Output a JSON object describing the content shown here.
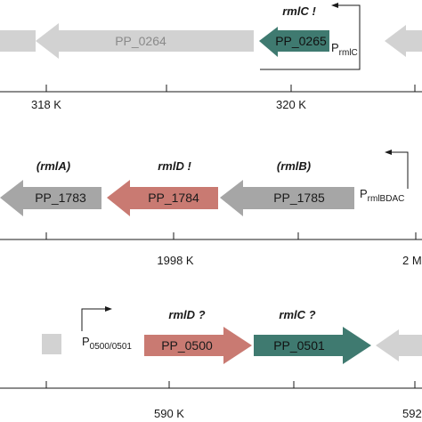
{
  "colors": {
    "gray_light": "#d2d2d2",
    "gray_med": "#a6a6a6",
    "teal": "#3f7a70",
    "salmon": "#c97a72",
    "line": "#1a1a1a"
  },
  "panel1": {
    "genes": [
      {
        "label": "",
        "color": "gray_light"
      },
      {
        "label": "PP_0264",
        "color": "gray_light"
      },
      {
        "label": "PP_0265",
        "color": "teal"
      },
      {
        "label": "",
        "color": "gray_light"
      }
    ],
    "name_label": "rmlC !",
    "promoter": {
      "main": "P",
      "sub": "rmlC"
    },
    "ticks": [
      "318 K",
      "320 K"
    ]
  },
  "panel2": {
    "genes": [
      {
        "label": "PP_1783",
        "color": "gray_med"
      },
      {
        "label": "PP_1784",
        "color": "salmon"
      },
      {
        "label": "PP_1785",
        "color": "gray_med"
      }
    ],
    "name_labels": [
      "(rmlA)",
      "rmlD !",
      "(rmlB)"
    ],
    "promoter": {
      "main": "P",
      "sub": "rmlBDAC"
    },
    "ticks": [
      "1998 K",
      "2 M"
    ]
  },
  "panel3": {
    "genes": [
      {
        "label": "",
        "color": "gray_light"
      },
      {
        "label": "PP_0500",
        "color": "salmon"
      },
      {
        "label": "PP_0501",
        "color": "teal"
      },
      {
        "label": "",
        "color": "gray_light"
      }
    ],
    "name_labels": [
      "rmlD ?",
      "rmlC ?"
    ],
    "promoter": {
      "main": "P",
      "sub": "0500/0501"
    },
    "ticks": [
      "590 K",
      "592"
    ]
  }
}
